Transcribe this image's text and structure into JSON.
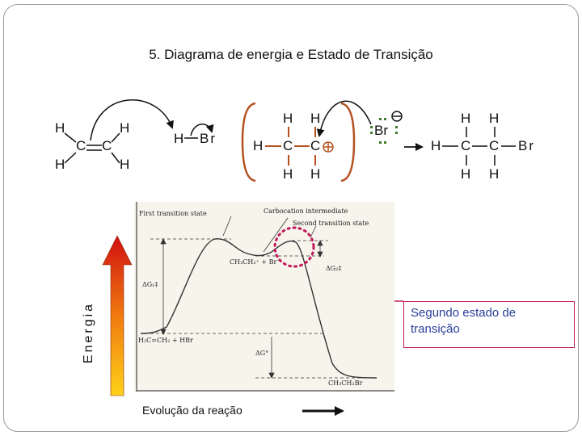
{
  "title": "5. Diagrama de energia e Estado de Transição",
  "energy_axis_label": "Energia",
  "x_axis_label": "Evolução da reação",
  "callout_text": "Segundo estado de transição",
  "atoms": {
    "H": "H",
    "C": "C",
    "Br": "Br"
  },
  "plot_labels": {
    "first_ts": "First transition state",
    "carbocation": "Carbocation intermediate",
    "second_ts": "Second transition state",
    "intermediate": "CH₃CH₂⁺ + Br⁻",
    "reactants": "H₂C=CH₂ + HBr",
    "product": "CH₃CH₂Br",
    "dg1": "ΔG₁‡",
    "dg2": "ΔG₂‡",
    "dg0": "ΔG°"
  },
  "colors": {
    "accent_brown": "#b5501e",
    "callout_magenta": "#c2185b",
    "callout_text": "#2a3f99",
    "dotted_green": "#3a7a2a"
  }
}
